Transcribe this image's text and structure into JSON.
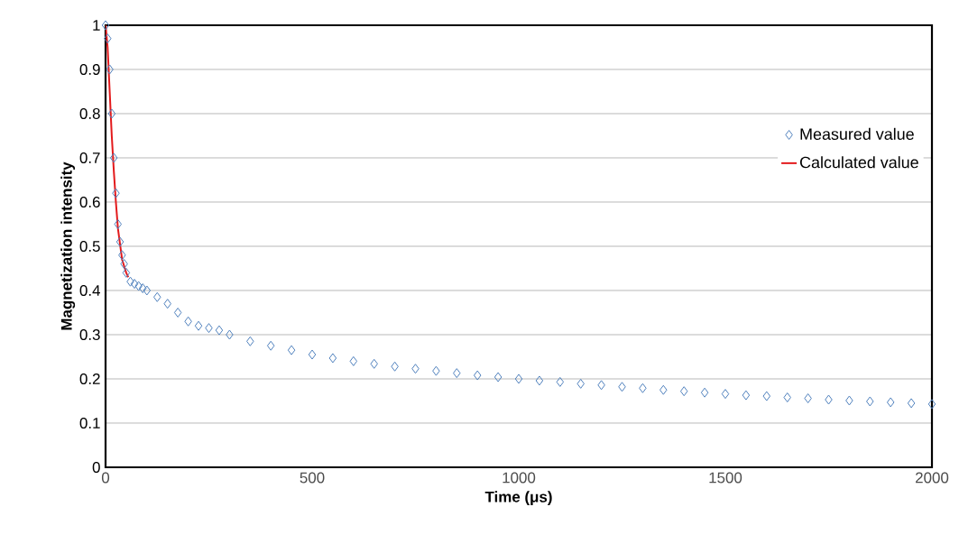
{
  "chart_data": {
    "type": "scatter",
    "xlabel": "Time (μs)",
    "ylabel": "Magnetization intensity",
    "xlim": [
      0,
      2000
    ],
    "xticks": [
      0,
      500,
      1000,
      1500,
      2000
    ],
    "ylim": [
      0,
      1
    ],
    "yticks": [
      0,
      0.1,
      0.2,
      0.3,
      0.4,
      0.5,
      0.6,
      0.7,
      0.8,
      0.9,
      1
    ],
    "grid": "y",
    "legend": "right",
    "series": [
      {
        "name": "Measured value",
        "type": "scatter",
        "marker": "diamond",
        "color": "#4f81bd",
        "x": [
          0,
          5,
          10,
          15,
          20,
          25,
          30,
          35,
          40,
          45,
          50,
          60,
          70,
          80,
          90,
          100,
          125,
          150,
          175,
          200,
          225,
          250,
          275,
          300,
          350,
          400,
          450,
          500,
          550,
          600,
          650,
          700,
          750,
          800,
          850,
          900,
          950,
          1000,
          1050,
          1100,
          1150,
          1200,
          1250,
          1300,
          1350,
          1400,
          1450,
          1500,
          1550,
          1600,
          1650,
          1700,
          1750,
          1800,
          1850,
          1900,
          1950,
          2000
        ],
        "values": [
          1.0,
          0.97,
          0.9,
          0.8,
          0.7,
          0.62,
          0.55,
          0.51,
          0.48,
          0.46,
          0.44,
          0.42,
          0.415,
          0.41,
          0.405,
          0.4,
          0.385,
          0.37,
          0.35,
          0.33,
          0.32,
          0.315,
          0.31,
          0.3,
          0.285,
          0.275,
          0.265,
          0.255,
          0.247,
          0.24,
          0.234,
          0.228,
          0.223,
          0.218,
          0.213,
          0.208,
          0.204,
          0.2,
          0.196,
          0.193,
          0.189,
          0.186,
          0.182,
          0.179,
          0.175,
          0.172,
          0.169,
          0.166,
          0.163,
          0.161,
          0.158,
          0.156,
          0.153,
          0.151,
          0.149,
          0.147,
          0.145,
          0.143
        ]
      },
      {
        "name": "Calculated value",
        "type": "line",
        "marker": "none",
        "line_style": "solid",
        "color": "#e31a1c",
        "x": [
          0,
          5,
          10,
          15,
          20,
          25,
          30,
          40,
          50,
          55
        ],
        "values": [
          1.0,
          0.95,
          0.85,
          0.75,
          0.67,
          0.6,
          0.54,
          0.47,
          0.44,
          0.43
        ]
      }
    ]
  }
}
